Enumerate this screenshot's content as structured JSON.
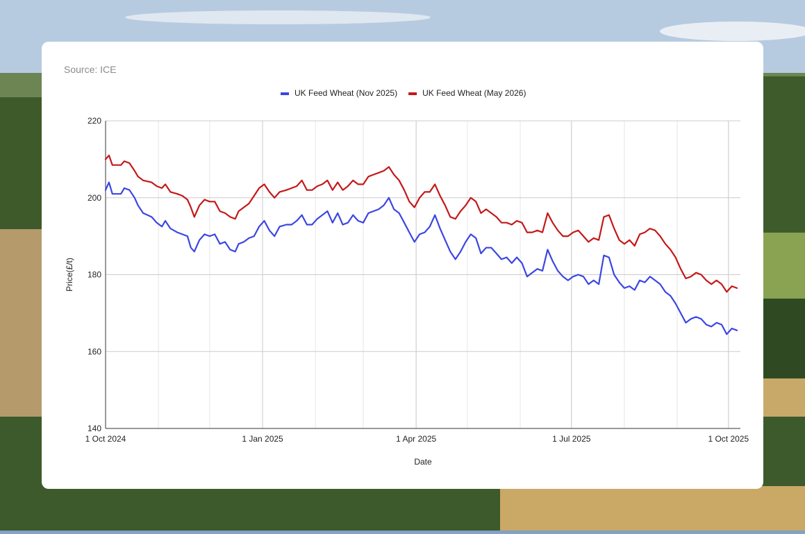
{
  "source": "Source: ICE",
  "chart_data": {
    "type": "line",
    "xlabel": "Date",
    "ylabel": "Price(£/t)",
    "ylim": [
      140,
      220
    ],
    "yticks": [
      140,
      160,
      180,
      200,
      220
    ],
    "xlim": [
      "2024-10-01",
      "2025-10-08"
    ],
    "xticks": [
      {
        "date": "2024-10-01",
        "label": "1 Oct 2024"
      },
      {
        "date": "2025-01-01",
        "label": "1 Jan 2025"
      },
      {
        "date": "2025-04-01",
        "label": "1 Apr 2025"
      },
      {
        "date": "2025-07-01",
        "label": "1 Jul 2025"
      },
      {
        "date": "2025-10-01",
        "label": "1 Oct 2025"
      }
    ],
    "grid": true,
    "legend": "top-center",
    "series": [
      {
        "name": "UK Feed Wheat (Nov 2025)",
        "color": "#3b46e0",
        "points": [
          [
            "2024-10-01",
            202.0
          ],
          [
            "2024-10-03",
            204.0
          ],
          [
            "2024-10-05",
            201.0
          ],
          [
            "2024-10-10",
            201.0
          ],
          [
            "2024-10-12",
            202.5
          ],
          [
            "2024-10-15",
            202.0
          ],
          [
            "2024-10-18",
            200.0
          ],
          [
            "2024-10-20",
            198.0
          ],
          [
            "2024-10-23",
            196.0
          ],
          [
            "2024-10-28",
            195.0
          ],
          [
            "2024-10-31",
            193.5
          ],
          [
            "2024-11-03",
            192.5
          ],
          [
            "2024-11-05",
            194.0
          ],
          [
            "2024-11-08",
            192.0
          ],
          [
            "2024-11-12",
            191.0
          ],
          [
            "2024-11-15",
            190.5
          ],
          [
            "2024-11-18",
            190.0
          ],
          [
            "2024-11-20",
            187.0
          ],
          [
            "2024-11-22",
            186.0
          ],
          [
            "2024-11-25",
            189.0
          ],
          [
            "2024-11-28",
            190.5
          ],
          [
            "2024-12-01",
            190.0
          ],
          [
            "2024-12-04",
            190.5
          ],
          [
            "2024-12-07",
            188.0
          ],
          [
            "2024-12-10",
            188.5
          ],
          [
            "2024-12-13",
            186.5
          ],
          [
            "2024-12-16",
            186.0
          ],
          [
            "2024-12-18",
            188.0
          ],
          [
            "2024-12-21",
            188.5
          ],
          [
            "2024-12-24",
            189.5
          ],
          [
            "2024-12-27",
            190.0
          ],
          [
            "2024-12-30",
            192.5
          ],
          [
            "2025-01-02",
            194.0
          ],
          [
            "2025-01-05",
            191.5
          ],
          [
            "2025-01-08",
            190.0
          ],
          [
            "2025-01-11",
            192.5
          ],
          [
            "2025-01-15",
            193.0
          ],
          [
            "2025-01-18",
            193.0
          ],
          [
            "2025-01-21",
            194.0
          ],
          [
            "2025-01-24",
            195.5
          ],
          [
            "2025-01-27",
            193.0
          ],
          [
            "2025-01-30",
            193.0
          ],
          [
            "2025-02-02",
            194.5
          ],
          [
            "2025-02-05",
            195.5
          ],
          [
            "2025-02-08",
            196.5
          ],
          [
            "2025-02-11",
            193.5
          ],
          [
            "2025-02-14",
            196.0
          ],
          [
            "2025-02-17",
            193.0
          ],
          [
            "2025-02-20",
            193.5
          ],
          [
            "2025-02-23",
            195.5
          ],
          [
            "2025-02-26",
            194.0
          ],
          [
            "2025-03-01",
            193.5
          ],
          [
            "2025-03-04",
            196.0
          ],
          [
            "2025-03-07",
            196.5
          ],
          [
            "2025-03-10",
            197.0
          ],
          [
            "2025-03-13",
            198.0
          ],
          [
            "2025-03-16",
            200.0
          ],
          [
            "2025-03-19",
            197.0
          ],
          [
            "2025-03-22",
            196.0
          ],
          [
            "2025-03-25",
            193.5
          ],
          [
            "2025-03-28",
            191.0
          ],
          [
            "2025-03-31",
            188.5
          ],
          [
            "2025-04-03",
            190.5
          ],
          [
            "2025-04-06",
            191.0
          ],
          [
            "2025-04-09",
            192.5
          ],
          [
            "2025-04-12",
            195.5
          ],
          [
            "2025-04-15",
            192.0
          ],
          [
            "2025-04-18",
            189.0
          ],
          [
            "2025-04-21",
            186.0
          ],
          [
            "2025-04-24",
            184.0
          ],
          [
            "2025-04-27",
            186.0
          ],
          [
            "2025-04-30",
            188.5
          ],
          [
            "2025-05-03",
            190.5
          ],
          [
            "2025-05-06",
            189.5
          ],
          [
            "2025-05-09",
            185.5
          ],
          [
            "2025-05-12",
            187.0
          ],
          [
            "2025-05-15",
            187.0
          ],
          [
            "2025-05-18",
            185.5
          ],
          [
            "2025-05-21",
            184.0
          ],
          [
            "2025-05-24",
            184.5
          ],
          [
            "2025-05-27",
            183.0
          ],
          [
            "2025-05-30",
            184.5
          ],
          [
            "2025-06-02",
            183.0
          ],
          [
            "2025-06-05",
            179.5
          ],
          [
            "2025-06-08",
            180.5
          ],
          [
            "2025-06-11",
            181.5
          ],
          [
            "2025-06-14",
            181.0
          ],
          [
            "2025-06-17",
            186.5
          ],
          [
            "2025-06-20",
            183.5
          ],
          [
            "2025-06-23",
            181.0
          ],
          [
            "2025-06-26",
            179.5
          ],
          [
            "2025-06-29",
            178.5
          ],
          [
            "2025-07-02",
            179.5
          ],
          [
            "2025-07-05",
            180.0
          ],
          [
            "2025-07-08",
            179.5
          ],
          [
            "2025-07-11",
            177.5
          ],
          [
            "2025-07-14",
            178.5
          ],
          [
            "2025-07-17",
            177.5
          ],
          [
            "2025-07-20",
            185.0
          ],
          [
            "2025-07-23",
            184.5
          ],
          [
            "2025-07-26",
            180.0
          ],
          [
            "2025-07-29",
            178.0
          ],
          [
            "2025-08-01",
            176.5
          ],
          [
            "2025-08-04",
            177.0
          ],
          [
            "2025-08-07",
            176.0
          ],
          [
            "2025-08-10",
            178.5
          ],
          [
            "2025-08-13",
            178.0
          ],
          [
            "2025-08-16",
            179.5
          ],
          [
            "2025-08-19",
            178.5
          ],
          [
            "2025-08-22",
            177.5
          ],
          [
            "2025-08-25",
            175.5
          ],
          [
            "2025-08-28",
            174.5
          ],
          [
            "2025-08-31",
            172.5
          ],
          [
            "2025-09-03",
            170.0
          ],
          [
            "2025-09-06",
            167.5
          ],
          [
            "2025-09-09",
            168.5
          ],
          [
            "2025-09-12",
            169.0
          ],
          [
            "2025-09-15",
            168.5
          ],
          [
            "2025-09-18",
            167.0
          ],
          [
            "2025-09-21",
            166.5
          ],
          [
            "2025-09-24",
            167.5
          ],
          [
            "2025-09-27",
            167.0
          ],
          [
            "2025-09-30",
            164.5
          ],
          [
            "2025-10-03",
            166.0
          ],
          [
            "2025-10-06",
            165.5
          ]
        ]
      },
      {
        "name": "UK Feed Wheat (May 2026)",
        "color": "#c41818",
        "points": [
          [
            "2024-10-01",
            210.0
          ],
          [
            "2024-10-03",
            211.0
          ],
          [
            "2024-10-05",
            208.5
          ],
          [
            "2024-10-10",
            208.5
          ],
          [
            "2024-10-12",
            209.5
          ],
          [
            "2024-10-15",
            209.0
          ],
          [
            "2024-10-18",
            207.0
          ],
          [
            "2024-10-20",
            205.5
          ],
          [
            "2024-10-23",
            204.5
          ],
          [
            "2024-10-28",
            204.0
          ],
          [
            "2024-10-31",
            203.0
          ],
          [
            "2024-11-03",
            202.5
          ],
          [
            "2024-11-05",
            203.5
          ],
          [
            "2024-11-08",
            201.5
          ],
          [
            "2024-11-12",
            201.0
          ],
          [
            "2024-11-15",
            200.5
          ],
          [
            "2024-11-18",
            199.5
          ],
          [
            "2024-11-20",
            197.5
          ],
          [
            "2024-11-22",
            195.0
          ],
          [
            "2024-11-25",
            198.0
          ],
          [
            "2024-11-28",
            199.5
          ],
          [
            "2024-12-01",
            199.0
          ],
          [
            "2024-12-04",
            199.0
          ],
          [
            "2024-12-07",
            196.5
          ],
          [
            "2024-12-10",
            196.0
          ],
          [
            "2024-12-13",
            195.0
          ],
          [
            "2024-12-16",
            194.5
          ],
          [
            "2024-12-18",
            196.5
          ],
          [
            "2024-12-21",
            197.5
          ],
          [
            "2024-12-24",
            198.5
          ],
          [
            "2024-12-27",
            200.5
          ],
          [
            "2024-12-30",
            202.5
          ],
          [
            "2025-01-02",
            203.5
          ],
          [
            "2025-01-05",
            201.5
          ],
          [
            "2025-01-08",
            200.0
          ],
          [
            "2025-01-11",
            201.5
          ],
          [
            "2025-01-15",
            202.0
          ],
          [
            "2025-01-18",
            202.5
          ],
          [
            "2025-01-21",
            203.0
          ],
          [
            "2025-01-24",
            204.5
          ],
          [
            "2025-01-27",
            202.0
          ],
          [
            "2025-01-30",
            202.0
          ],
          [
            "2025-02-02",
            203.0
          ],
          [
            "2025-02-05",
            203.5
          ],
          [
            "2025-02-08",
            204.5
          ],
          [
            "2025-02-11",
            202.0
          ],
          [
            "2025-02-14",
            204.0
          ],
          [
            "2025-02-17",
            202.0
          ],
          [
            "2025-02-20",
            203.0
          ],
          [
            "2025-02-23",
            204.5
          ],
          [
            "2025-02-26",
            203.5
          ],
          [
            "2025-03-01",
            203.5
          ],
          [
            "2025-03-04",
            205.5
          ],
          [
            "2025-03-07",
            206.0
          ],
          [
            "2025-03-10",
            206.5
          ],
          [
            "2025-03-13",
            207.0
          ],
          [
            "2025-03-16",
            208.0
          ],
          [
            "2025-03-19",
            206.0
          ],
          [
            "2025-03-22",
            204.5
          ],
          [
            "2025-03-25",
            202.0
          ],
          [
            "2025-03-28",
            199.0
          ],
          [
            "2025-03-31",
            197.5
          ],
          [
            "2025-04-03",
            200.0
          ],
          [
            "2025-04-06",
            201.5
          ],
          [
            "2025-04-09",
            201.5
          ],
          [
            "2025-04-12",
            203.5
          ],
          [
            "2025-04-15",
            200.5
          ],
          [
            "2025-04-18",
            198.0
          ],
          [
            "2025-04-21",
            195.0
          ],
          [
            "2025-04-24",
            194.5
          ],
          [
            "2025-04-27",
            196.5
          ],
          [
            "2025-04-30",
            198.0
          ],
          [
            "2025-05-03",
            200.0
          ],
          [
            "2025-05-06",
            199.0
          ],
          [
            "2025-05-09",
            196.0
          ],
          [
            "2025-05-12",
            197.0
          ],
          [
            "2025-05-15",
            196.0
          ],
          [
            "2025-05-18",
            195.0
          ],
          [
            "2025-05-21",
            193.5
          ],
          [
            "2025-05-24",
            193.5
          ],
          [
            "2025-05-27",
            193.0
          ],
          [
            "2025-05-30",
            194.0
          ],
          [
            "2025-06-02",
            193.5
          ],
          [
            "2025-06-05",
            191.0
          ],
          [
            "2025-06-08",
            191.0
          ],
          [
            "2025-06-11",
            191.5
          ],
          [
            "2025-06-14",
            191.0
          ],
          [
            "2025-06-17",
            196.0
          ],
          [
            "2025-06-20",
            193.5
          ],
          [
            "2025-06-23",
            191.5
          ],
          [
            "2025-06-26",
            190.0
          ],
          [
            "2025-06-29",
            190.0
          ],
          [
            "2025-07-02",
            191.0
          ],
          [
            "2025-07-05",
            191.5
          ],
          [
            "2025-07-08",
            190.0
          ],
          [
            "2025-07-11",
            188.5
          ],
          [
            "2025-07-14",
            189.5
          ],
          [
            "2025-07-17",
            189.0
          ],
          [
            "2025-07-20",
            195.0
          ],
          [
            "2025-07-23",
            195.5
          ],
          [
            "2025-07-26",
            192.0
          ],
          [
            "2025-07-29",
            189.0
          ],
          [
            "2025-08-01",
            188.0
          ],
          [
            "2025-08-04",
            189.0
          ],
          [
            "2025-08-07",
            187.5
          ],
          [
            "2025-08-10",
            190.5
          ],
          [
            "2025-08-13",
            191.0
          ],
          [
            "2025-08-16",
            192.0
          ],
          [
            "2025-08-19",
            191.5
          ],
          [
            "2025-08-22",
            190.0
          ],
          [
            "2025-08-25",
            188.0
          ],
          [
            "2025-08-28",
            186.5
          ],
          [
            "2025-08-31",
            184.5
          ],
          [
            "2025-09-03",
            181.5
          ],
          [
            "2025-09-06",
            179.0
          ],
          [
            "2025-09-09",
            179.5
          ],
          [
            "2025-09-12",
            180.5
          ],
          [
            "2025-09-15",
            180.0
          ],
          [
            "2025-09-18",
            178.5
          ],
          [
            "2025-09-21",
            177.5
          ],
          [
            "2025-09-24",
            178.5
          ],
          [
            "2025-09-27",
            177.5
          ],
          [
            "2025-09-30",
            175.5
          ],
          [
            "2025-10-03",
            177.0
          ],
          [
            "2025-10-06",
            176.5
          ]
        ]
      }
    ]
  }
}
